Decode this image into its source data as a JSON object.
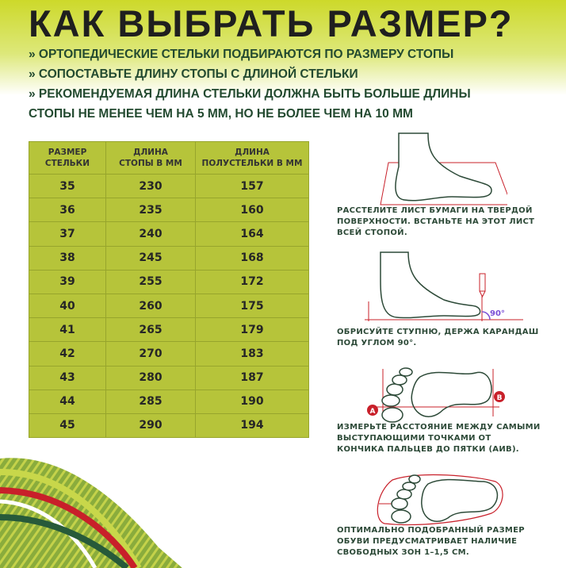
{
  "title": "КАК ВЫБРАТЬ РАЗМЕР?",
  "bullets": [
    "» ОРТОПЕДИЧЕСКИЕ СТЕЛЬКИ ПОДБИРАЮТСЯ ПО РАЗМЕРУ СТОПЫ",
    "» СОПОСТАВЬТЕ ДЛИНУ СТОПЫ С ДЛИНОЙ СТЕЛЬКИ",
    "» РЕКОМЕНДУЕМАЯ ДЛИНА СТЕЛЬКИ ДОЛЖНА БЫТЬ ",
    "БОЛЬШЕ ДЛИНЫ",
    "СТОПЫ НЕ МЕНЕЕ ЧЕМ НА 5 ММ, НО НЕ БОЛЕЕ ЧЕМ НА 10 ММ"
  ],
  "table": {
    "headers": [
      [
        "РАЗМЕР",
        "СТЕЛЬКИ"
      ],
      [
        "ДЛИНА",
        "СТОПЫ В ММ"
      ],
      [
        "ДЛИНА",
        "ПОЛУСТЕЛЬКИ В ММ"
      ]
    ],
    "rows": [
      [
        "35",
        "230",
        "157"
      ],
      [
        "36",
        "235",
        "160"
      ],
      [
        "37",
        "240",
        "164"
      ],
      [
        "38",
        "245",
        "168"
      ],
      [
        "39",
        "255",
        "172"
      ],
      [
        "40",
        "260",
        "175"
      ],
      [
        "41",
        "265",
        "179"
      ],
      [
        "42",
        "270",
        "183"
      ],
      [
        "43",
        "280",
        "187"
      ],
      [
        "44",
        "285",
        "190"
      ],
      [
        "45",
        "290",
        "194"
      ]
    ]
  },
  "steps": [
    [
      "РАССТЕЛИТЕ ЛИСТ БУМАГИ НА ТВЕРДОЙ",
      "ПОВЕРХНОСТИ. ВСТАНЬТЕ НА ЭТОТ ЛИСТ",
      "ВСЕЙ СТОПОЙ."
    ],
    [
      "ОБРИСУЙТЕ СТУПНЮ, ДЕРЖА КАРАНДАШ",
      "ПОД УГЛОМ 90°."
    ],
    [
      "ИЗМЕРЬТЕ РАССТОЯНИЕ МЕЖДУ САМЫМИ",
      "ВЫСТУПАЮЩИМИ ТОЧКАМИ ОТ",
      "КОНЧИКА ПАЛЬЦЕВ ДО ПЯТКИ (АИВ)."
    ],
    [
      "ОПТИМАЛЬНО ПОДОБРАННЫЙ РАЗМЕР",
      "ОБУВИ ПРЕДУСМАТРИВАЕТ НАЛИЧИЕ",
      "СВОБОДНЫХ ЗОН 1–1,5 СМ."
    ]
  ],
  "labels": {
    "angle": "90°",
    "point_a": "A",
    "point_b": "B"
  },
  "colors": {
    "accent_green": "#b6c43a",
    "dark_green": "#2d4a38",
    "red": "#c8202a",
    "angle": "#7a4fd6"
  }
}
